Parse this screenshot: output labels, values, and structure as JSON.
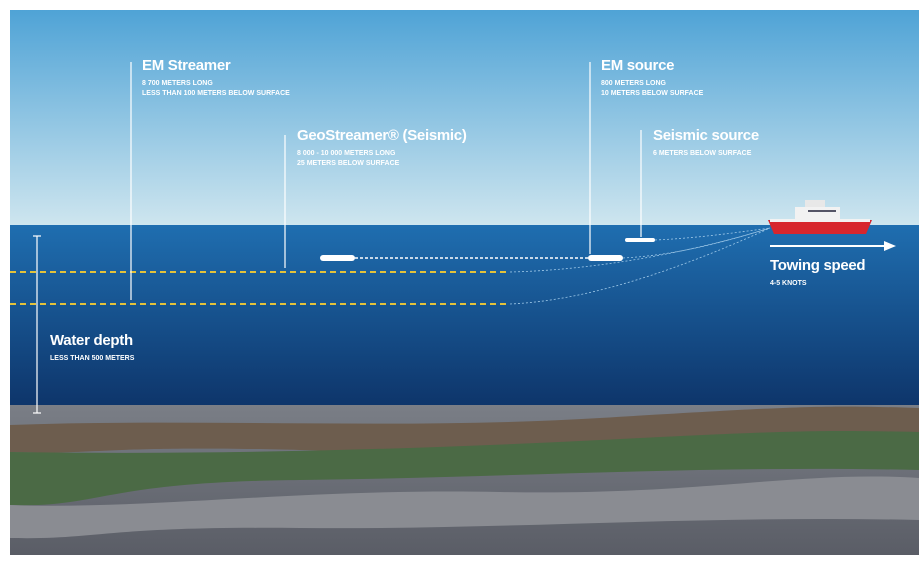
{
  "labels": [
    {
      "title": "EM Streamer",
      "lines": [
        "8 700 METERS LONG",
        "LESS THAN 100 METERS BELOW SURFACE"
      ]
    },
    {
      "title": "GeoStreamer® (Seismic)",
      "lines": [
        "8 000 - 10 000 METERS LONG",
        "25 METERS BELOW SURFACE"
      ]
    },
    {
      "title": "EM source",
      "lines": [
        "800 METERS LONG",
        "10 METERS BELOW SURFACE"
      ]
    },
    {
      "title": "Seismic source",
      "lines": [
        "6 METERS BELOW SURFACE"
      ]
    },
    {
      "title": "Towing speed",
      "lines": [
        "4-5 KNOTS"
      ]
    },
    {
      "title": "Water depth",
      "lines": [
        "LESS THAN 500 METERS"
      ]
    }
  ]
}
